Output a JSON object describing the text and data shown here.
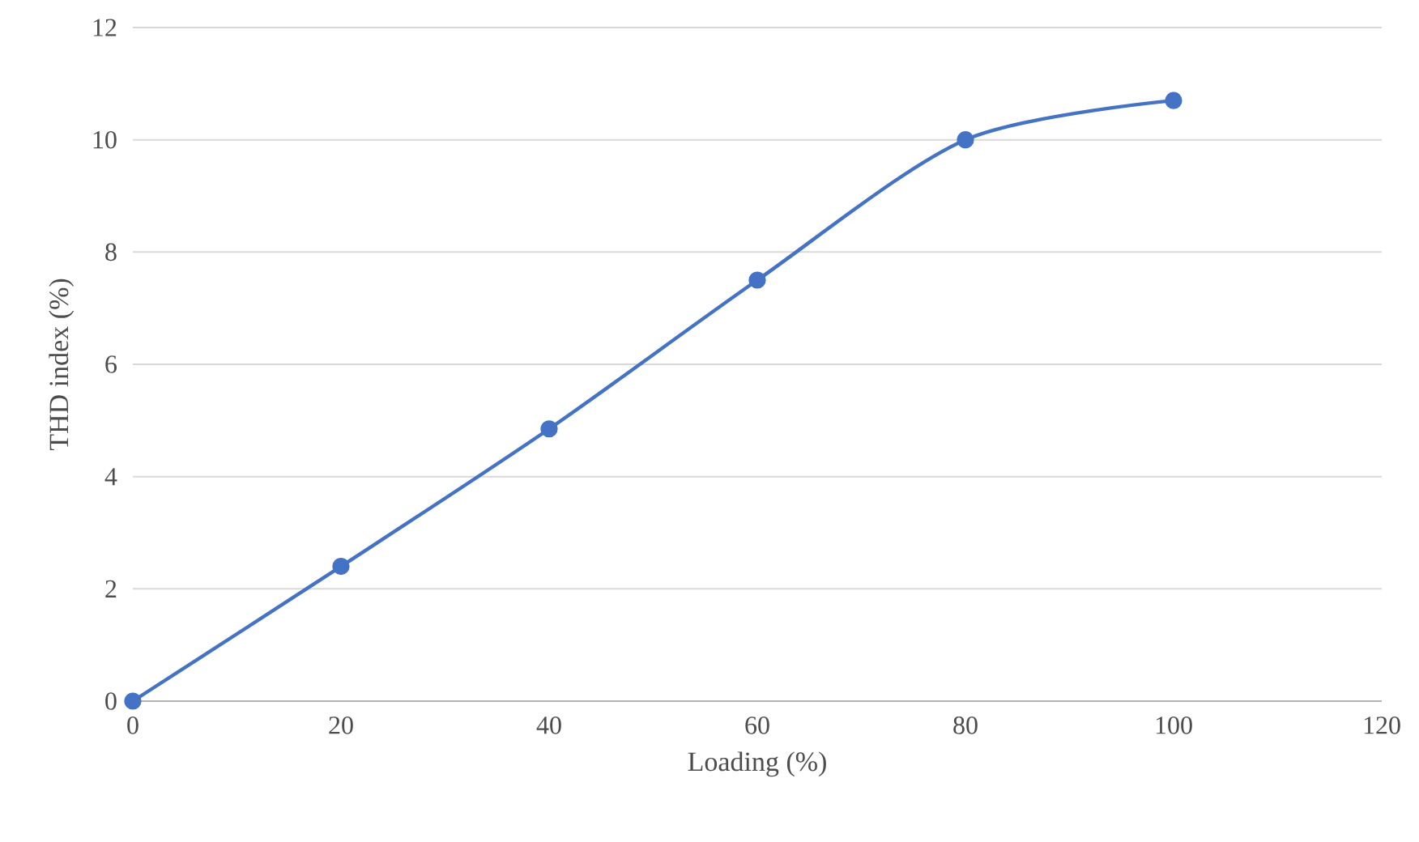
{
  "chart_data": {
    "type": "line",
    "xlabel": "Loading (%)",
    "ylabel": "THD index (%)",
    "x": [
      0,
      20,
      40,
      60,
      80,
      100
    ],
    "series": [
      {
        "color": "#4472c4",
        "values": [
          0,
          2.4,
          4.85,
          7.5,
          10,
          10.7
        ]
      }
    ],
    "xlim": [
      0,
      120
    ],
    "xticks": [
      0,
      20,
      40,
      60,
      80,
      100,
      120
    ],
    "ylim": [
      0,
      12
    ],
    "yticks": [
      0,
      2,
      4,
      6,
      8,
      10,
      12
    ],
    "grid": "y",
    "marker": "circle",
    "line_style": "solid"
  }
}
